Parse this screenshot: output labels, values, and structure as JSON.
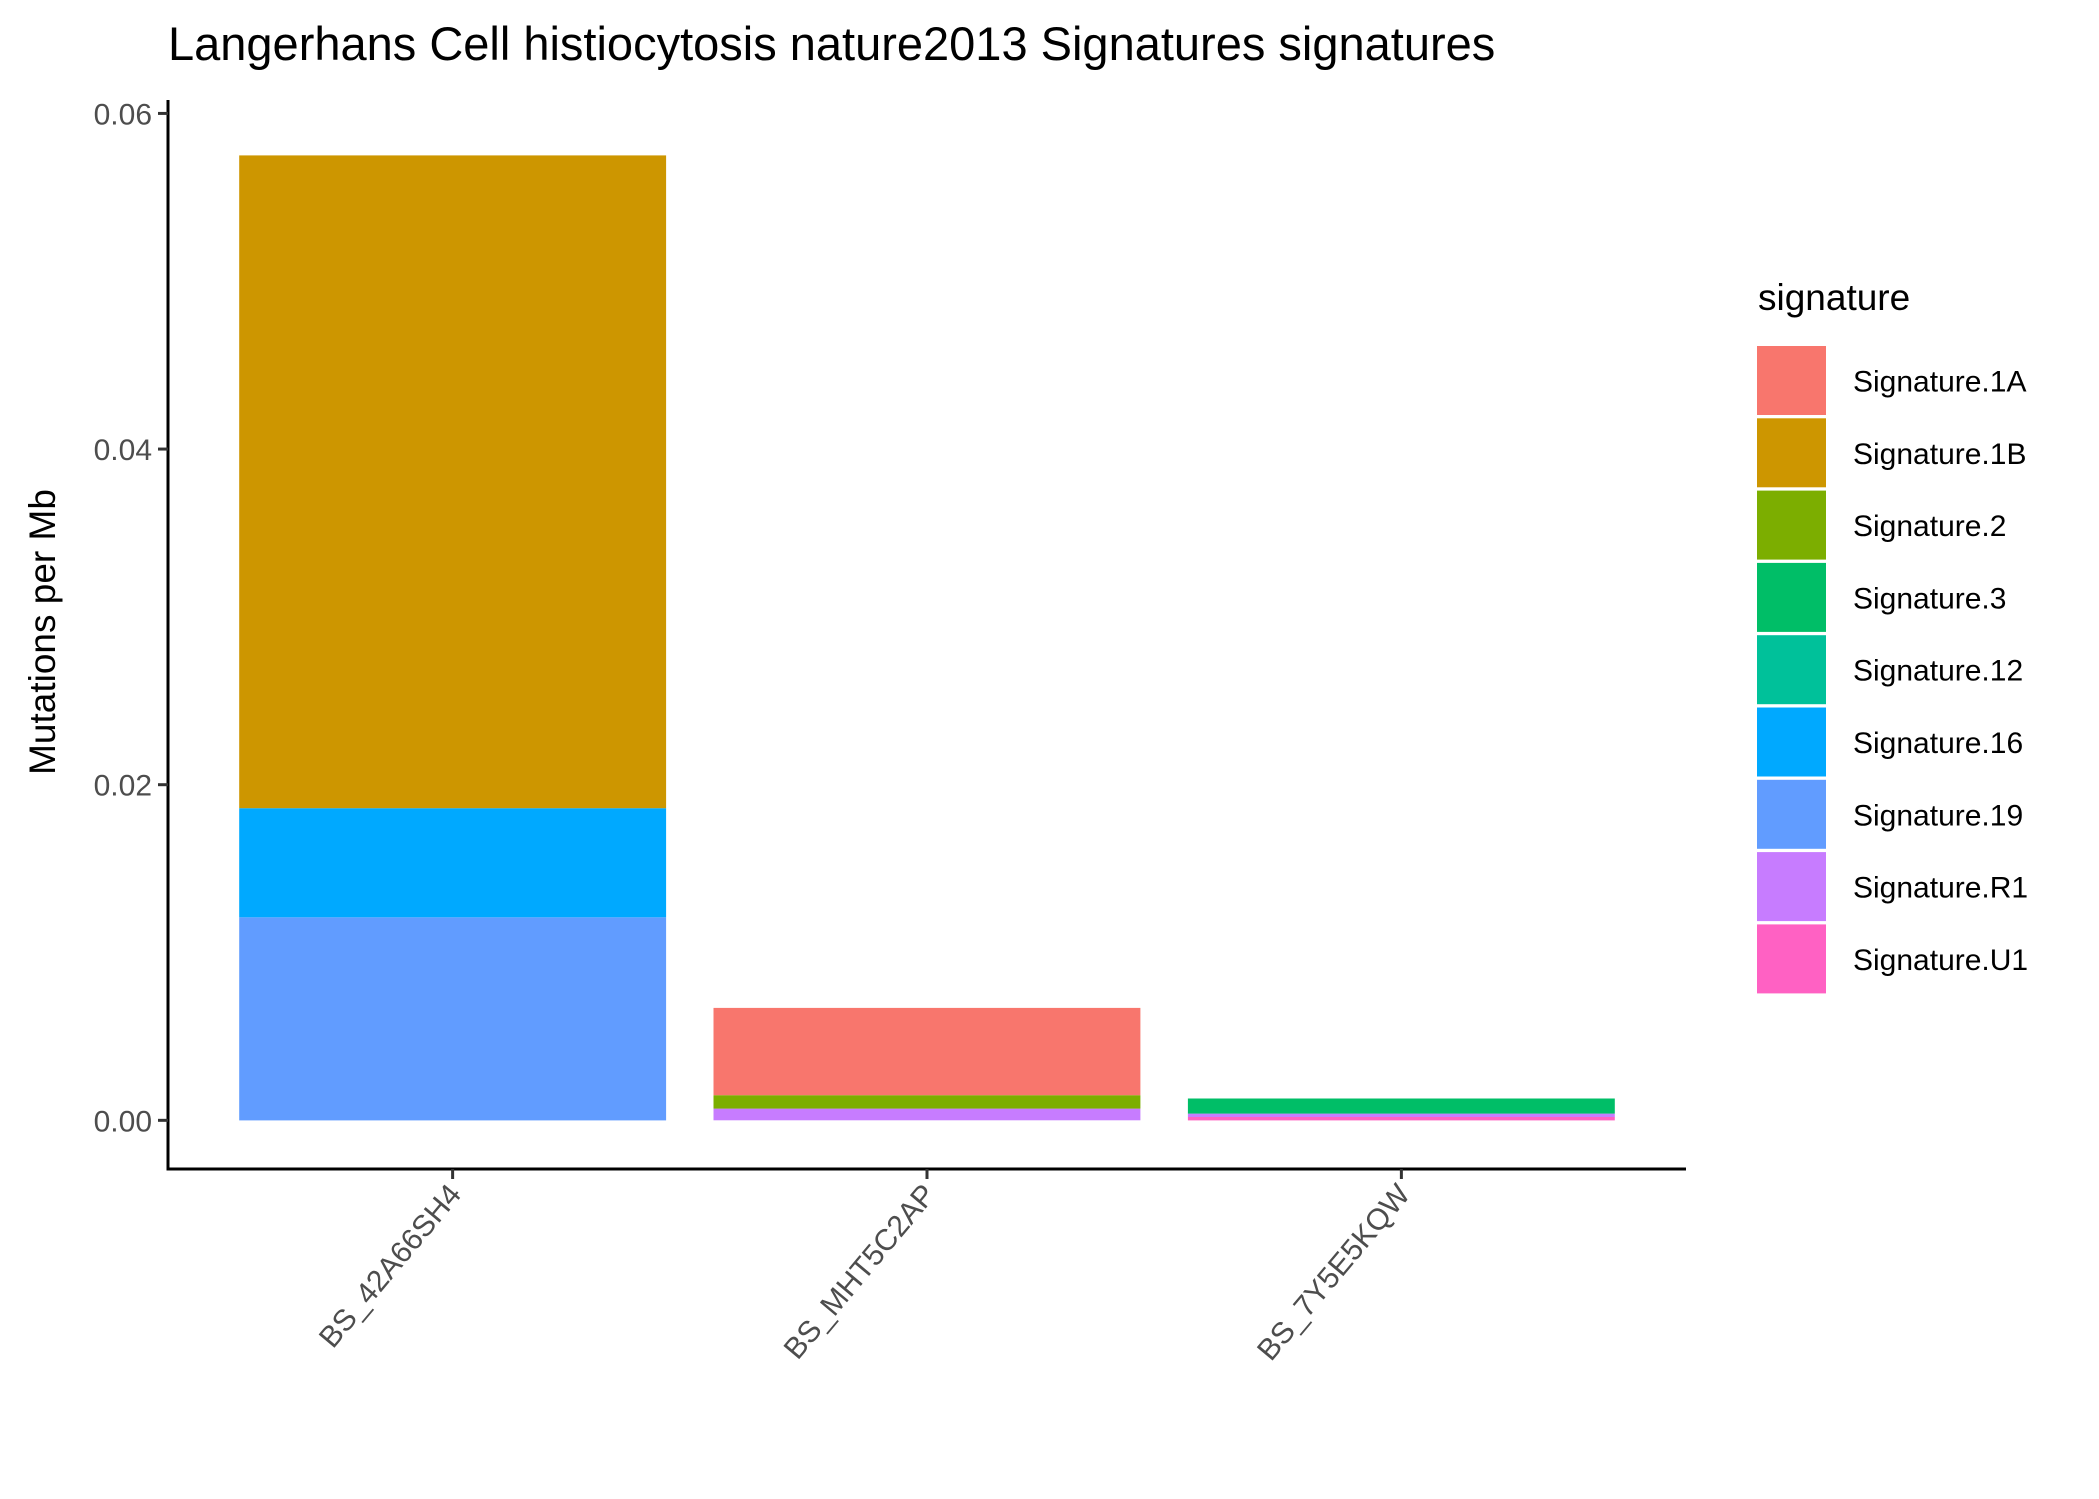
{
  "chart_data": {
    "type": "bar",
    "stacked": true,
    "title": "Langerhans Cell histiocytosis nature2013 Signatures signatures",
    "xlabel": "",
    "ylabel": "Mutations per Mb",
    "ylim": [
      -0.0029,
      0.0608
    ],
    "yticks": [
      0.0,
      0.02,
      0.04,
      0.06
    ],
    "ytick_labels": [
      "0.00",
      "0.02",
      "0.04",
      "0.06"
    ],
    "categories": [
      "BS_42A66SH4",
      "BS_MHT5C2AP",
      "BS_7Y5E5KQW"
    ],
    "legend": {
      "title": "signature",
      "position": "right"
    },
    "series": [
      {
        "name": "Signature.1A",
        "color": "#F8766D",
        "values": [
          0,
          0.0052,
          0
        ]
      },
      {
        "name": "Signature.1B",
        "color": "#CD9600",
        "values": [
          0.0389,
          0,
          0
        ]
      },
      {
        "name": "Signature.2",
        "color": "#7CAE00",
        "values": [
          0,
          0.0008,
          0
        ]
      },
      {
        "name": "Signature.3",
        "color": "#00BE67",
        "values": [
          0,
          0,
          0.0009
        ]
      },
      {
        "name": "Signature.12",
        "color": "#00C19A",
        "values": [
          0,
          0,
          0
        ]
      },
      {
        "name": "Signature.16",
        "color": "#00A9FF",
        "values": [
          0.0065,
          0,
          0
        ]
      },
      {
        "name": "Signature.19",
        "color": "#619CFF",
        "values": [
          0.0121,
          0,
          0
        ]
      },
      {
        "name": "Signature.R1",
        "color": "#C77CFF",
        "values": [
          0,
          0.0007,
          0.0002
        ]
      },
      {
        "name": "Signature.U1",
        "color": "#FF61C3",
        "values": [
          0,
          0,
          0.0002
        ]
      }
    ],
    "stack_order_bottom_to_top": [
      "Signature.U1",
      "Signature.R1",
      "Signature.19",
      "Signature.16",
      "Signature.12",
      "Signature.3",
      "Signature.2",
      "Signature.1B",
      "Signature.1A"
    ]
  }
}
